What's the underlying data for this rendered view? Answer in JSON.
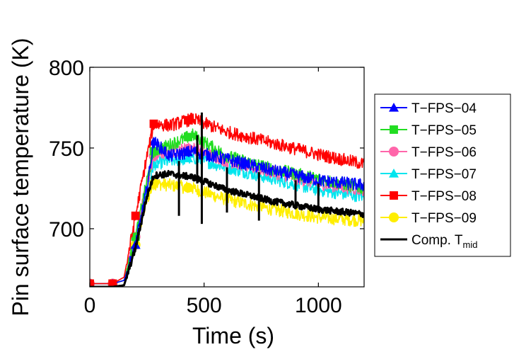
{
  "chart_data": {
    "type": "line",
    "title": "",
    "xlabel": "Time (s)",
    "ylabel": "Pin surface temperature (K)",
    "xlim": [
      0,
      1200
    ],
    "ylim": [
      664,
      800
    ],
    "xticks": [
      0,
      500,
      1000
    ],
    "yticks": [
      700,
      750,
      800
    ],
    "grid": false,
    "legend_position": "right",
    "series": [
      {
        "name": "T−FPS−04",
        "color": "#0000ff",
        "marker": "triangle",
        "x": [
          0,
          100,
          150,
          200,
          250,
          280,
          350,
          450,
          600,
          800,
          1000,
          1200
        ],
        "y": [
          666,
          666,
          668,
          690,
          725,
          754,
          745,
          748,
          743,
          736,
          730,
          727
        ]
      },
      {
        "name": "T−FPS−05",
        "color": "#22dd22",
        "marker": "square",
        "x": [
          0,
          100,
          150,
          200,
          250,
          280,
          350,
          450,
          600,
          800,
          1000,
          1200
        ],
        "y": [
          666,
          666,
          668,
          695,
          730,
          748,
          752,
          758,
          745,
          737,
          731,
          725
        ]
      },
      {
        "name": "T−FPS−06",
        "color": "#ff66aa",
        "marker": "circle",
        "x": [
          0,
          100,
          150,
          200,
          250,
          280,
          350,
          450,
          600,
          800,
          1000,
          1200
        ],
        "y": [
          666,
          666,
          668,
          695,
          728,
          745,
          748,
          750,
          742,
          735,
          728,
          724
        ]
      },
      {
        "name": "T−FPS−07",
        "color": "#00e5ee",
        "marker": "triangle",
        "x": [
          0,
          100,
          150,
          200,
          250,
          280,
          350,
          450,
          600,
          800,
          1000,
          1200
        ],
        "y": [
          666,
          666,
          668,
          690,
          725,
          740,
          742,
          744,
          738,
          731,
          724,
          720
        ]
      },
      {
        "name": "T−FPS−08",
        "color": "#ff0000",
        "marker": "square",
        "x": [
          0,
          100,
          150,
          200,
          250,
          280,
          350,
          450,
          600,
          800,
          1000,
          1200
        ],
        "y": [
          666,
          666,
          670,
          708,
          745,
          765,
          764,
          768,
          760,
          753,
          746,
          740
        ]
      },
      {
        "name": "T−FPS−09",
        "color": "#ffee00",
        "marker": "circle",
        "x": [
          0,
          100,
          150,
          200,
          250,
          280,
          350,
          450,
          600,
          800,
          1000,
          1200
        ],
        "y": [
          666,
          666,
          668,
          690,
          718,
          728,
          727,
          725,
          718,
          712,
          707,
          705
        ]
      },
      {
        "name": "Comp. T",
        "name_subscript": "mid",
        "color": "#000000",
        "marker": "none",
        "x": [
          0,
          100,
          150,
          200,
          250,
          280,
          350,
          450,
          600,
          800,
          1000,
          1200
        ],
        "y": [
          664,
          664,
          665,
          688,
          720,
          733,
          734,
          732,
          724,
          717,
          712,
          709
        ]
      }
    ]
  }
}
